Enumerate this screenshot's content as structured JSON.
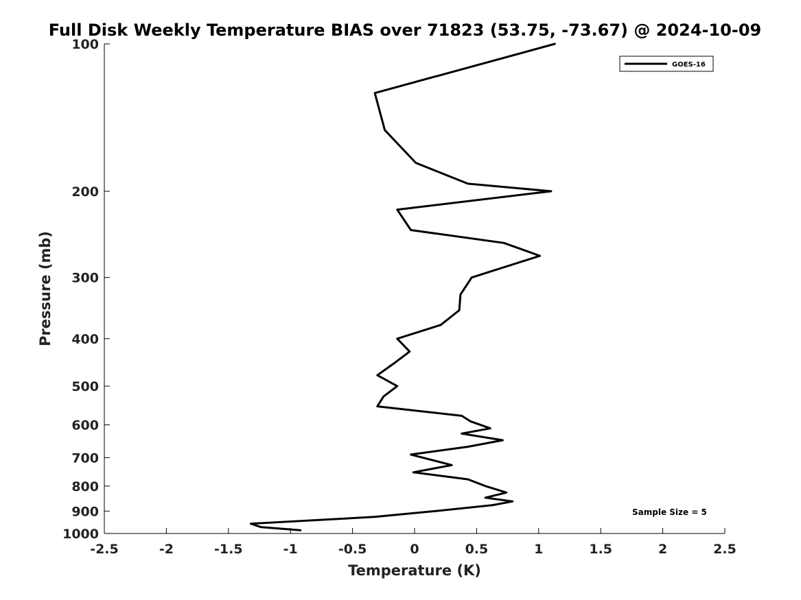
{
  "chart_data": {
    "type": "line",
    "title": "Full Disk Weekly Temperature BIAS over 71823 (53.75, -73.67) @ 2024-10-09",
    "xlabel": "Temperature (K)",
    "ylabel": "Pressure (mb)",
    "xlim": [
      -2.5,
      2.5
    ],
    "ylim": [
      100,
      1000
    ],
    "y_scale": "log",
    "y_inverted": true,
    "x_ticks": [
      -2.5,
      -2,
      -1.5,
      -1,
      -0.5,
      0,
      0.5,
      1,
      1.5,
      2,
      2.5
    ],
    "x_tick_labels": [
      "-2.5",
      "-2",
      "-1.5",
      "-1",
      "-0.5",
      "0",
      "0.5",
      "1",
      "1.5",
      "2",
      "2.5"
    ],
    "y_ticks": [
      100,
      200,
      300,
      400,
      500,
      600,
      700,
      800,
      900,
      1000
    ],
    "y_tick_labels": [
      "100",
      "200",
      "300",
      "400",
      "500",
      "600",
      "700",
      "800",
      "900",
      "1000"
    ],
    "grid": false,
    "legend_position": "top-right",
    "series": [
      {
        "name": "GOES-16",
        "color": "#000000",
        "points": [
          {
            "x": 1.13,
            "p": 100
          },
          {
            "x": -0.32,
            "p": 126
          },
          {
            "x": -0.24,
            "p": 150
          },
          {
            "x": 0.01,
            "p": 175
          },
          {
            "x": 0.43,
            "p": 193
          },
          {
            "x": 1.1,
            "p": 200
          },
          {
            "x": -0.14,
            "p": 218
          },
          {
            "x": -0.03,
            "p": 240
          },
          {
            "x": 0.72,
            "p": 255
          },
          {
            "x": 1.01,
            "p": 271
          },
          {
            "x": 0.46,
            "p": 300
          },
          {
            "x": 0.37,
            "p": 325
          },
          {
            "x": 0.36,
            "p": 350
          },
          {
            "x": 0.21,
            "p": 375
          },
          {
            "x": -0.14,
            "p": 400
          },
          {
            "x": -0.04,
            "p": 425
          },
          {
            "x": -0.17,
            "p": 450
          },
          {
            "x": -0.3,
            "p": 475
          },
          {
            "x": -0.14,
            "p": 500
          },
          {
            "x": -0.25,
            "p": 525
          },
          {
            "x": -0.3,
            "p": 550
          },
          {
            "x": 0.38,
            "p": 575
          },
          {
            "x": 0.45,
            "p": 590
          },
          {
            "x": 0.61,
            "p": 610
          },
          {
            "x": 0.38,
            "p": 625
          },
          {
            "x": 0.71,
            "p": 645
          },
          {
            "x": 0.43,
            "p": 665
          },
          {
            "x": -0.03,
            "p": 690
          },
          {
            "x": 0.3,
            "p": 725
          },
          {
            "x": -0.01,
            "p": 750
          },
          {
            "x": 0.43,
            "p": 775
          },
          {
            "x": 0.57,
            "p": 800
          },
          {
            "x": 0.74,
            "p": 825
          },
          {
            "x": 0.57,
            "p": 845
          },
          {
            "x": 0.79,
            "p": 860
          },
          {
            "x": 0.63,
            "p": 875
          },
          {
            "x": 0.17,
            "p": 900
          },
          {
            "x": -0.32,
            "p": 925
          },
          {
            "x": -1.32,
            "p": 955
          },
          {
            "x": -1.24,
            "p": 970
          },
          {
            "x": -0.92,
            "p": 985
          }
        ]
      }
    ],
    "annotation": "Sample Size = 5"
  }
}
